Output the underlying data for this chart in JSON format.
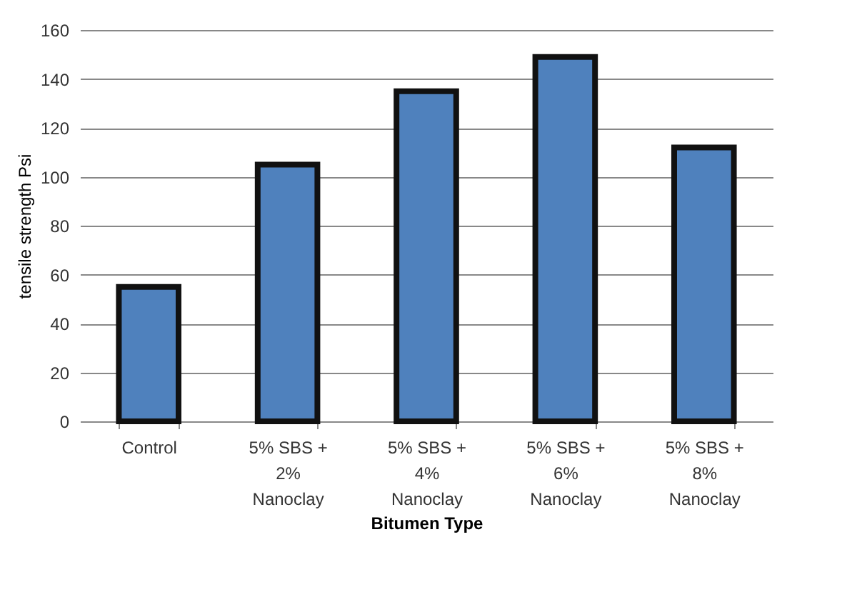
{
  "chart_data": {
    "type": "bar",
    "xlabel": "Bitumen Type",
    "ylabel": "tensile strength  Psi",
    "categories": [
      "Control",
      "5% SBS + 2% Nanoclay",
      "5% SBS + 4% Nanoclay",
      "5% SBS + 6% Nanoclay",
      "5% SBS + 8% Nanoclay"
    ],
    "values": [
      55,
      105,
      135,
      149,
      112
    ],
    "color": "#4f81bd",
    "ylim": [
      0,
      160
    ],
    "yticks": [
      0,
      20,
      40,
      60,
      80,
      100,
      120,
      140,
      160
    ],
    "grid": "y"
  }
}
